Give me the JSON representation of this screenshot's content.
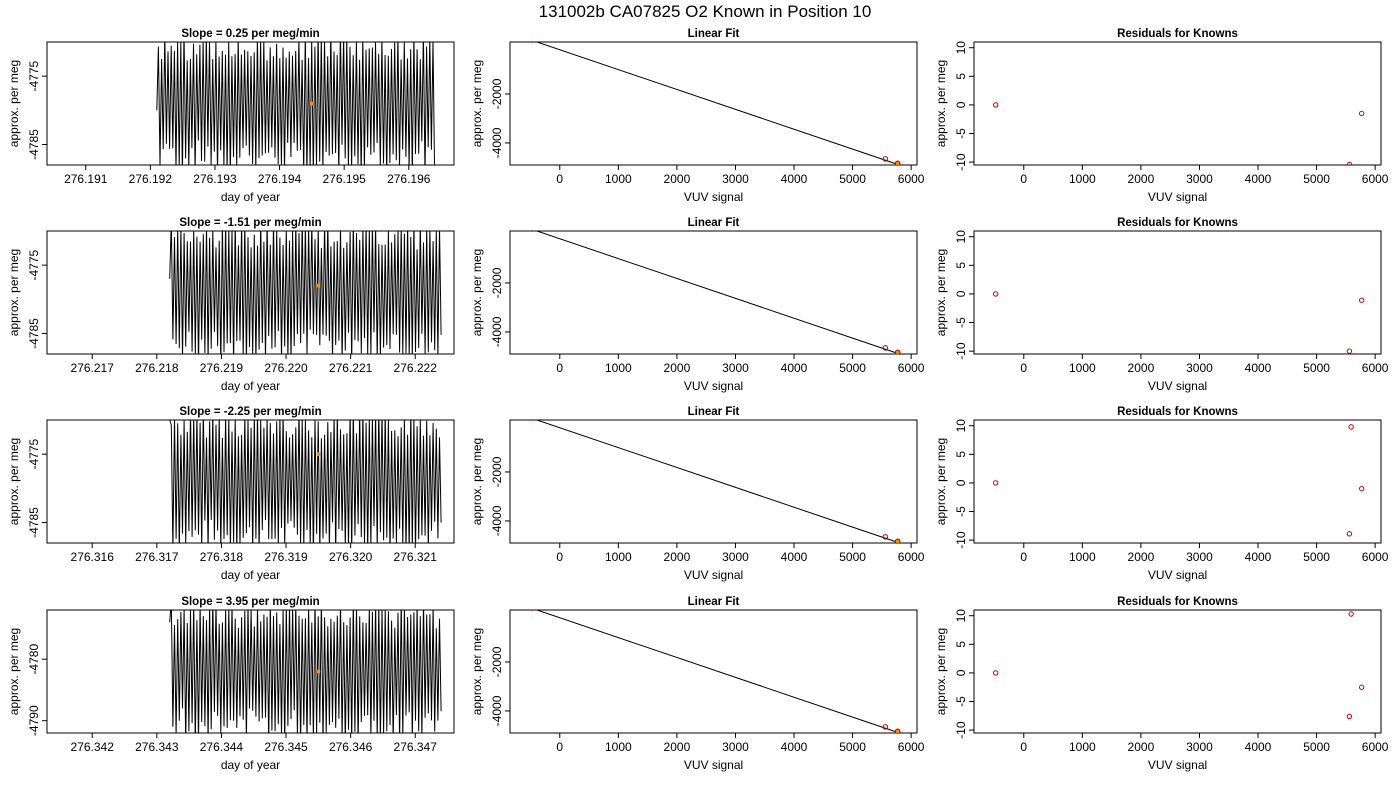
{
  "page_title": "131002b     CA07825   O2 Known in Position  10",
  "colors": {
    "axis": "#000000",
    "line": "#000000",
    "residual_point": "#cc0000",
    "known_point": "#ff8c00",
    "fit_point": "#cc0000"
  },
  "chart_data": [
    {
      "row": 1,
      "type": "line",
      "title": "Slope =  0.25  per meg/min",
      "xlabel": "day of year",
      "ylabel": "approx. per meg",
      "x_ticks": [
        "276.191",
        "276.192",
        "276.193",
        "276.194",
        "276.195",
        "276.196"
      ],
      "y_ticks": [
        "-4775",
        "-4785"
      ],
      "xlim": [
        276.1904,
        276.1967
      ],
      "ylim": [
        -4788,
        -4770
      ],
      "trace": {
        "x_start": 276.1921,
        "x_end": 276.1964,
        "y_low": -4788,
        "y_high": -4770,
        "first_y": -4780
      },
      "marker": {
        "x": 276.1945,
        "y": -4779
      }
    },
    {
      "row": 1,
      "type": "scatter",
      "title": "Linear Fit",
      "xlabel": "VUV signal",
      "ylabel": "approx. per meg",
      "x_ticks": [
        "0",
        "1000",
        "2000",
        "3000",
        "4000",
        "5000",
        "6000"
      ],
      "y_ticks": [
        "-2000",
        "-4000"
      ],
      "xlim": [
        -850,
        6100
      ],
      "ylim": [
        -4900,
        120
      ],
      "line": {
        "x": [
          -550,
          5800
        ],
        "y": [
          250,
          -4900
        ]
      },
      "points": [
        {
          "x": -480,
          "y": 200
        },
        {
          "x": 5560,
          "y": -4650
        },
        {
          "x": 5770,
          "y": -4830
        }
      ]
    },
    {
      "row": 1,
      "type": "scatter",
      "title": "Residuals for Knowns",
      "xlabel": "VUV signal",
      "ylabel": "approx. per meg",
      "x_ticks": [
        "0",
        "1000",
        "2000",
        "3000",
        "4000",
        "5000",
        "6000"
      ],
      "y_ticks": [
        "-10",
        "-5",
        "0",
        "5",
        "10"
      ],
      "xlim": [
        -850,
        6100
      ],
      "ylim": [
        -10.5,
        11
      ],
      "points": [
        {
          "x": -480,
          "y": 0
        },
        {
          "x": 5770,
          "y": -1.5
        },
        {
          "x": 5560,
          "y": -10.4
        }
      ]
    },
    {
      "row": 2,
      "type": "line",
      "title": "Slope =  -1.51  per meg/min",
      "xlabel": "day of year",
      "ylabel": "approx. per meg",
      "x_ticks": [
        "276.217",
        "276.218",
        "276.219",
        "276.220",
        "276.221",
        "276.222"
      ],
      "y_ticks": [
        "-4775",
        "-4785"
      ],
      "xlim": [
        276.2163,
        276.2226
      ],
      "ylim": [
        -4788,
        -4770
      ],
      "trace": {
        "x_start": 276.2182,
        "x_end": 276.2224,
        "y_low": -4788,
        "y_high": -4770,
        "first_y": -4777
      },
      "marker": {
        "x": 276.2205,
        "y": -4778
      }
    },
    {
      "row": 2,
      "type": "scatter",
      "title": "Linear Fit",
      "xlabel": "VUV signal",
      "ylabel": "approx. per meg",
      "x_ticks": [
        "0",
        "1000",
        "2000",
        "3000",
        "4000",
        "5000",
        "6000"
      ],
      "y_ticks": [
        "-2000",
        "-4000"
      ],
      "xlim": [
        -850,
        6100
      ],
      "ylim": [
        -4900,
        120
      ],
      "line": {
        "x": [
          -550,
          5800
        ],
        "y": [
          250,
          -4900
        ]
      },
      "points": [
        {
          "x": -480,
          "y": 200
        },
        {
          "x": 5560,
          "y": -4650
        },
        {
          "x": 5770,
          "y": -4830
        }
      ]
    },
    {
      "row": 2,
      "type": "scatter",
      "title": "Residuals for Knowns",
      "xlabel": "VUV signal",
      "ylabel": "approx. per meg",
      "x_ticks": [
        "0",
        "1000",
        "2000",
        "3000",
        "4000",
        "5000",
        "6000"
      ],
      "y_ticks": [
        "-10",
        "-5",
        "0",
        "5",
        "10"
      ],
      "xlim": [
        -850,
        6100
      ],
      "ylim": [
        -10.5,
        11
      ],
      "points": [
        {
          "x": -480,
          "y": 0
        },
        {
          "x": 5770,
          "y": -1.1
        },
        {
          "x": 5560,
          "y": -10
        }
      ]
    },
    {
      "row": 3,
      "type": "line",
      "title": "Slope =  -2.25  per meg/min",
      "xlabel": "day of year",
      "ylabel": "approx. per meg",
      "x_ticks": [
        "276.316",
        "276.317",
        "276.318",
        "276.319",
        "276.320",
        "276.321"
      ],
      "y_ticks": [
        "-4775",
        "-4785"
      ],
      "xlim": [
        276.3153,
        276.3216
      ],
      "ylim": [
        -4788,
        -4770
      ],
      "trace": {
        "x_start": 276.3172,
        "x_end": 276.3214,
        "y_low": -4788,
        "y_high": -4770,
        "first_y": -4770
      },
      "marker": {
        "x": 276.3195,
        "y": -4775
      }
    },
    {
      "row": 3,
      "type": "scatter",
      "title": "Linear Fit",
      "xlabel": "VUV signal",
      "ylabel": "approx. per meg",
      "x_ticks": [
        "0",
        "1000",
        "2000",
        "3000",
        "4000",
        "5000",
        "6000"
      ],
      "y_ticks": [
        "-2000",
        "-4000"
      ],
      "xlim": [
        -850,
        6100
      ],
      "ylim": [
        -4900,
        120
      ],
      "line": {
        "x": [
          -550,
          5800
        ],
        "y": [
          250,
          -4900
        ]
      },
      "points": [
        {
          "x": -480,
          "y": 200
        },
        {
          "x": 5560,
          "y": -4650
        },
        {
          "x": 5770,
          "y": -4830
        }
      ]
    },
    {
      "row": 3,
      "type": "scatter",
      "title": "Residuals for Knowns",
      "xlabel": "VUV signal",
      "ylabel": "approx. per meg",
      "x_ticks": [
        "0",
        "1000",
        "2000",
        "3000",
        "4000",
        "5000",
        "6000"
      ],
      "y_ticks": [
        "-10",
        "-5",
        "0",
        "5",
        "10"
      ],
      "xlim": [
        -850,
        6100
      ],
      "ylim": [
        -10.5,
        11
      ],
      "points": [
        {
          "x": -480,
          "y": 0
        },
        {
          "x": 5590,
          "y": 9.8
        },
        {
          "x": 5770,
          "y": -1
        },
        {
          "x": 5560,
          "y": -8.9
        }
      ]
    },
    {
      "row": 4,
      "type": "line",
      "title": "Slope =  3.95  per meg/min",
      "xlabel": "day of year",
      "ylabel": "approx. per meg",
      "x_ticks": [
        "276.342",
        "276.343",
        "276.344",
        "276.345",
        "276.346",
        "276.347"
      ],
      "y_ticks": [
        "-4780",
        "-4790"
      ],
      "xlim": [
        276.3413,
        276.3476
      ],
      "ylim": [
        -4792,
        -4772
      ],
      "trace": {
        "x_start": 276.3432,
        "x_end": 276.3474,
        "y_low": -4792,
        "y_high": -4772,
        "first_y": -4774
      },
      "marker": {
        "x": 276.3455,
        "y": -4782
      }
    },
    {
      "row": 4,
      "type": "scatter",
      "title": "Linear Fit",
      "xlabel": "VUV signal",
      "ylabel": "approx. per meg",
      "x_ticks": [
        "0",
        "1000",
        "2000",
        "3000",
        "4000",
        "5000",
        "6000"
      ],
      "y_ticks": [
        "-2000",
        "-4000"
      ],
      "xlim": [
        -850,
        6100
      ],
      "ylim": [
        -4900,
        120
      ],
      "line": {
        "x": [
          -550,
          5800
        ],
        "y": [
          250,
          -4900
        ]
      },
      "points": [
        {
          "x": -480,
          "y": 200
        },
        {
          "x": 5560,
          "y": -4650
        },
        {
          "x": 5770,
          "y": -4830
        }
      ]
    },
    {
      "row": 4,
      "type": "scatter",
      "title": "Residuals for Knowns",
      "xlabel": "VUV signal",
      "ylabel": "approx. per meg",
      "x_ticks": [
        "0",
        "1000",
        "2000",
        "3000",
        "4000",
        "5000",
        "6000"
      ],
      "y_ticks": [
        "-10",
        "-5",
        "0",
        "5",
        "10"
      ],
      "xlim": [
        -850,
        6100
      ],
      "ylim": [
        -10.5,
        11
      ],
      "points": [
        {
          "x": -480,
          "y": 0
        },
        {
          "x": 5590,
          "y": 10.3
        },
        {
          "x": 5770,
          "y": -2.5
        },
        {
          "x": 5560,
          "y": -7.6
        }
      ]
    }
  ]
}
